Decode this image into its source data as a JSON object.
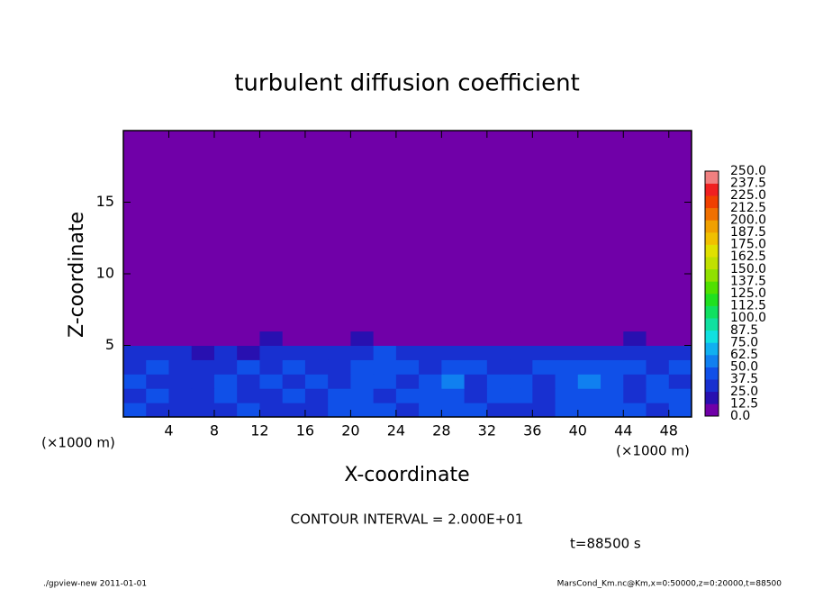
{
  "chart_data": {
    "type": "heatmap",
    "title": "turbulent diffusion coefficient",
    "xlabel": "X-coordinate",
    "ylabel": "Z-coordinate",
    "xunit": "(×1000 m)",
    "xunit_right": "(×1000 m)",
    "contour_note": "CONTOUR INTERVAL = 2.000E+01",
    "time_label": "t=88500 s",
    "footer_left": "./gpview-new   2011-01-01",
    "footer_right": "MarsCond_Km.nc@Km,x=0:50000,z=0:20000,t=88500",
    "xlim": [
      0,
      50
    ],
    "ylim": [
      0,
      20
    ],
    "xticks": [
      4,
      8,
      12,
      16,
      20,
      24,
      28,
      32,
      36,
      40,
      44,
      48
    ],
    "yticks": [
      5,
      10,
      15
    ],
    "x_bins": [
      0,
      2,
      4,
      6,
      8,
      10,
      12,
      14,
      16,
      18,
      20,
      22,
      24,
      26,
      28,
      30,
      32,
      34,
      36,
      38,
      40,
      42,
      44,
      46,
      48,
      50
    ],
    "z_bins": [
      0,
      1,
      2,
      3,
      4,
      5,
      6,
      20
    ],
    "z": [
      [
        40,
        35,
        30,
        30,
        35,
        40,
        35,
        30,
        30,
        40,
        45,
        40,
        35,
        40,
        45,
        40,
        35,
        30,
        35,
        40,
        40,
        45,
        40,
        35,
        40
      ],
      [
        35,
        40,
        30,
        35,
        40,
        30,
        35,
        40,
        35,
        45,
        40,
        35,
        40,
        45,
        40,
        35,
        40,
        45,
        35,
        40,
        45,
        40,
        35,
        40,
        40
      ],
      [
        40,
        35,
        35,
        30,
        40,
        35,
        40,
        35,
        40,
        35,
        45,
        40,
        35,
        40,
        50,
        35,
        40,
        40,
        35,
        45,
        50,
        40,
        35,
        40,
        35
      ],
      [
        35,
        40,
        30,
        35,
        30,
        40,
        35,
        40,
        35,
        30,
        40,
        45,
        40,
        35,
        45,
        40,
        35,
        35,
        40,
        40,
        45,
        40,
        40,
        35,
        40
      ],
      [
        30,
        30,
        25,
        20,
        30,
        20,
        35,
        30,
        30,
        25,
        35,
        40,
        30,
        35,
        30,
        35,
        25,
        30,
        35,
        25,
        35,
        35,
        30,
        35,
        35
      ],
      [
        5,
        5,
        5,
        5,
        10,
        5,
        15,
        5,
        5,
        5,
        20,
        10,
        5,
        5,
        5,
        10,
        5,
        5,
        5,
        5,
        5,
        5,
        15,
        5,
        5
      ],
      [
        0,
        0,
        0,
        0,
        0,
        0,
        0,
        0,
        0,
        0,
        0,
        0,
        0,
        0,
        0,
        0,
        0,
        0,
        0,
        0,
        0,
        0,
        0,
        0,
        0
      ]
    ],
    "levels": [
      {
        "value": 0,
        "label": "0.0"
      },
      {
        "value": 12.5,
        "label": "12.5"
      },
      {
        "value": 25,
        "label": "25.0"
      },
      {
        "value": 37.5,
        "label": "37.5"
      },
      {
        "value": 50,
        "label": "50.0"
      },
      {
        "value": 62.5,
        "label": "62.5"
      },
      {
        "value": 75,
        "label": "75.0"
      },
      {
        "value": 87.5,
        "label": "87.5"
      },
      {
        "value": 100,
        "label": "100.0"
      },
      {
        "value": 112.5,
        "label": "112.5"
      },
      {
        "value": 125,
        "label": "125.0"
      },
      {
        "value": 137.5,
        "label": "137.5"
      },
      {
        "value": 150,
        "label": "150.0"
      },
      {
        "value": 162.5,
        "label": "162.5"
      },
      {
        "value": 175,
        "label": "175.0"
      },
      {
        "value": 187.5,
        "label": "187.5"
      },
      {
        "value": 200,
        "label": "200.0"
      },
      {
        "value": 212.5,
        "label": "212.5"
      },
      {
        "value": 225,
        "label": "225.0"
      },
      {
        "value": 237.5,
        "label": "237.5"
      },
      {
        "value": 250,
        "label": "250.0"
      }
    ],
    "colors": [
      "#7000a8",
      "#2810b0",
      "#1830d0",
      "#1050e8",
      "#1080f0",
      "#10b0f0",
      "#10e0e0",
      "#10e0a0",
      "#10e060",
      "#20e020",
      "#50e000",
      "#90e000",
      "#c0e000",
      "#e0e000",
      "#f0c000",
      "#f0a000",
      "#f07000",
      "#f04000",
      "#f02020",
      "#f08080"
    ]
  }
}
